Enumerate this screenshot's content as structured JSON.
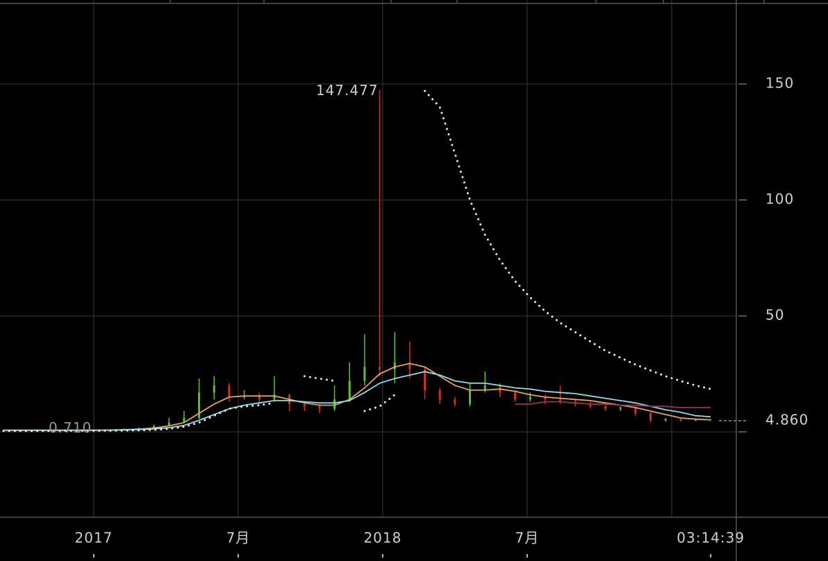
{
  "chart_data": {
    "type": "candlestick",
    "categories": [
      null,
      null,
      null,
      null,
      null,
      null,
      null,
      null,
      null,
      null,
      null,
      null,
      null,
      null,
      null,
      null,
      null,
      null,
      null,
      null,
      null,
      null,
      null,
      null,
      null,
      null,
      null,
      null,
      null,
      null,
      null,
      null,
      null,
      null,
      null,
      null,
      null,
      null,
      null,
      null,
      null,
      null,
      null,
      null,
      null,
      null,
      null,
      null
    ],
    "open": [
      0.72,
      0.72,
      0.72,
      0.72,
      0.72,
      0.72,
      0.72,
      0.75,
      0.9,
      1.2,
      1.5,
      2.5,
      4,
      6,
      17,
      20,
      15,
      15.5,
      14,
      16,
      12,
      11,
      10,
      14,
      22,
      28,
      27,
      30,
      27,
      18,
      14,
      12,
      18,
      20,
      17,
      14,
      15,
      14,
      13,
      12,
      11,
      10,
      10.5,
      8,
      5,
      5.5,
      5,
      5.2
    ],
    "close": [
      0.72,
      0.72,
      0.72,
      0.72,
      0.72,
      0.72,
      0.75,
      0.9,
      1.2,
      1.5,
      2.5,
      4,
      6,
      17,
      20,
      15,
      15.5,
      14,
      16,
      12,
      11,
      10,
      14,
      22,
      28,
      27,
      30,
      27,
      18,
      14,
      12,
      18,
      20,
      17,
      14,
      15,
      14,
      13,
      12,
      11,
      10,
      10.5,
      8,
      5,
      5.5,
      5,
      5.2,
      4.86
    ],
    "high": [
      0.75,
      0.75,
      0.75,
      0.75,
      0.75,
      0.75,
      0.85,
      1.1,
      1.5,
      2,
      3.2,
      6,
      9,
      23,
      24,
      21,
      18,
      17,
      24,
      16.5,
      13,
      12,
      20,
      30,
      42,
      147.477,
      43,
      39,
      28,
      19,
      15,
      21,
      26,
      21,
      18,
      17,
      16,
      20,
      14,
      13,
      12,
      11,
      11,
      8.5,
      6,
      6,
      5.5,
      5.4
    ],
    "low": [
      0.71,
      0.71,
      0.71,
      0.71,
      0.71,
      0.71,
      0.71,
      0.72,
      0.85,
      1.1,
      1.4,
      2.3,
      3.8,
      5.5,
      14,
      13,
      14,
      12,
      13,
      9,
      9,
      8,
      9,
      13,
      20,
      24,
      21,
      23,
      14,
      12,
      11,
      11,
      17,
      15,
      13,
      13,
      12,
      12,
      11,
      10,
      9,
      9,
      7,
      4,
      4.5,
      4.5,
      4.6,
      4.7
    ],
    "up_color": "#5cc42b",
    "down_color": "#d2302a",
    "lines": [
      {
        "color": "#e8a35c",
        "style": "solid",
        "values": [
          0.72,
          0.72,
          0.72,
          0.72,
          0.72,
          0.72,
          0.72,
          0.8,
          0.95,
          1.2,
          1.7,
          2.6,
          4,
          8,
          12,
          15,
          15.5,
          15.5,
          15.5,
          14,
          12.5,
          11.5,
          11.5,
          14,
          19,
          25,
          28,
          29.5,
          28,
          24,
          20,
          18,
          18,
          18.5,
          17.5,
          16,
          15,
          14.5,
          14,
          13.5,
          12.5,
          11.5,
          10.5,
          9,
          7.5,
          6,
          5.5,
          5.2
        ]
      },
      {
        "color": "#8fdcec",
        "style": "solid",
        "values": [
          0.72,
          0.72,
          0.72,
          0.72,
          0.72,
          0.72,
          0.72,
          0.75,
          0.85,
          1.0,
          1.3,
          1.8,
          2.8,
          5,
          7.5,
          10,
          11.5,
          12.5,
          13.5,
          13.5,
          13,
          12.5,
          12.5,
          13.5,
          17,
          21,
          23,
          24.5,
          26,
          24.5,
          22,
          21,
          21,
          20,
          19,
          18.5,
          17.5,
          17,
          16.5,
          15.5,
          14.5,
          13.5,
          12.5,
          11,
          9.5,
          8.5,
          7,
          6.5
        ]
      },
      {
        "color": "#9c3450",
        "style": "solid",
        "values": [
          null,
          null,
          null,
          null,
          null,
          null,
          null,
          null,
          null,
          null,
          null,
          null,
          null,
          null,
          null,
          null,
          null,
          null,
          null,
          null,
          null,
          null,
          null,
          null,
          null,
          null,
          null,
          null,
          null,
          null,
          null,
          null,
          null,
          null,
          12,
          12,
          13,
          13,
          12.5,
          12,
          12,
          11.5,
          11.5,
          11,
          11,
          10.5,
          10.5,
          10.5
        ]
      },
      {
        "color": "#e6e6e6",
        "style": "dotted",
        "values": [
          0.4,
          0.4,
          0.4,
          0.45,
          0.5,
          0.5,
          0.5,
          0.55,
          0.6,
          0.7,
          0.9,
          1.3,
          2.2,
          4,
          7,
          10,
          11,
          11.5,
          12.5,
          null,
          24,
          23,
          22,
          null,
          9,
          11,
          16,
          null,
          147,
          140,
          120,
          100,
          85,
          74,
          65,
          58,
          52,
          47,
          43,
          39,
          35,
          32,
          29,
          26.5,
          24,
          22,
          20,
          18.5
        ]
      }
    ],
    "annotations": [
      {
        "value": 0.71,
        "label": "0.710",
        "index": 3
      }
    ],
    "last_price": {
      "value": 4.86,
      "label": "4.860",
      "color": "#3fbf3f"
    },
    "xlim": [
      -0.23,
      48.7
    ],
    "ylim": [
      -36.8,
      186.2
    ],
    "yticks": [
      50,
      100,
      150
    ],
    "xticks": [
      {
        "value": 6,
        "label": "2017"
      },
      {
        "value": 15.6,
        "label": "7月"
      },
      {
        "value": 25.2,
        "label": "2018"
      },
      {
        "value": 34.8,
        "label": "7月"
      },
      {
        "value": 47,
        "label": "03:14:39"
      }
    ],
    "grid": true
  }
}
